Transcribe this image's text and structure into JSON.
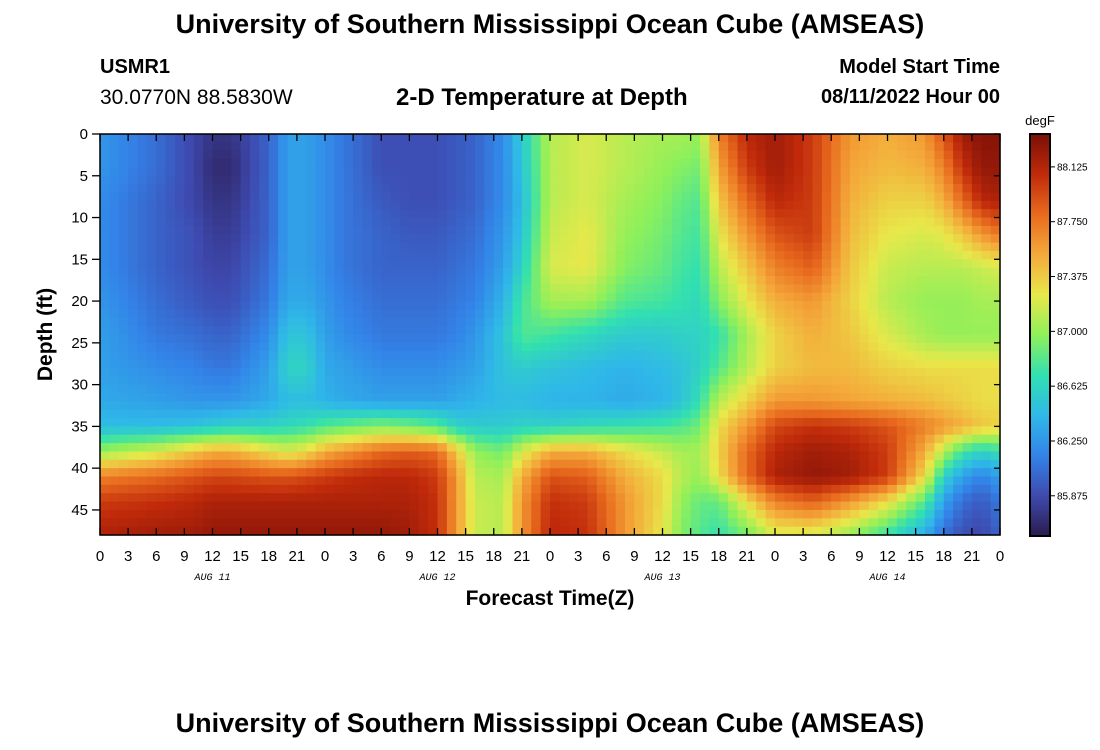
{
  "header": {
    "title": "University of Southern Mississippi Ocean Cube (AMSEAS)",
    "station_id": "USMR1",
    "coords": "30.0770N  88.5830W",
    "chart_title": "2-D Temperature at Depth",
    "model_start_label": "Model Start Time",
    "model_start_value": "08/11/2022 Hour 00"
  },
  "footer": {
    "title": "University of Southern Mississippi Ocean Cube (AMSEAS)"
  },
  "chart_data": {
    "type": "heatmap",
    "title": "2-D Temperature at Depth",
    "xlabel": "Forecast Time(Z)",
    "ylabel": "Depth (ft)",
    "x_unit": "forecast hour",
    "xlim": [
      0,
      96
    ],
    "ylim": [
      0,
      48
    ],
    "y_inverted": true,
    "x_ticks": [
      0,
      3,
      6,
      9,
      12,
      15,
      18,
      21,
      24,
      27,
      30,
      33,
      36,
      39,
      42,
      45,
      48,
      51,
      54,
      57,
      60,
      63,
      66,
      69,
      72,
      75,
      78,
      81,
      84,
      87,
      90,
      93,
      96
    ],
    "x_tick_labels": [
      "0",
      "3",
      "6",
      "9",
      "12",
      "15",
      "18",
      "21",
      "0",
      "3",
      "6",
      "9",
      "12",
      "15",
      "18",
      "21",
      "0",
      "3",
      "6",
      "9",
      "12",
      "15",
      "18",
      "21",
      "0",
      "3",
      "6",
      "9",
      "12",
      "15",
      "18",
      "21",
      "0"
    ],
    "date_labels": [
      {
        "hour": 12,
        "label": "AUG 11"
      },
      {
        "hour": 36,
        "label": "AUG 12"
      },
      {
        "hour": 60,
        "label": "AUG 13"
      },
      {
        "hour": 84,
        "label": "AUG 14"
      }
    ],
    "y_ticks": [
      0,
      5,
      10,
      15,
      20,
      25,
      30,
      35,
      40,
      45
    ],
    "y_tick_labels": [
      "0",
      "5",
      "10",
      "15",
      "20",
      "25",
      "30",
      "35",
      "40",
      "45"
    ],
    "colorbar": {
      "unit": "degF",
      "range": [
        85.6,
        88.35
      ],
      "ticks": [
        85.875,
        86.25,
        86.625,
        87.0,
        87.375,
        87.75,
        88.125
      ],
      "tick_labels": [
        "85.875",
        "86.250",
        "86.625",
        "87.000",
        "87.375",
        "87.750",
        "88.125"
      ],
      "colors": [
        "#2b1b4e",
        "#3e4ab0",
        "#3383e8",
        "#2fb8e8",
        "#32e0b0",
        "#8ef05a",
        "#e8e84a",
        "#f4a93a",
        "#e86a1e",
        "#c02a0a",
        "#7a0f08"
      ]
    },
    "grid": false,
    "depths": [
      0,
      4,
      8,
      12,
      16,
      20,
      24,
      28,
      32,
      35,
      38,
      41,
      44,
      48
    ],
    "times": [
      0,
      6,
      10,
      12,
      14,
      18,
      20,
      22,
      24,
      26,
      30,
      33,
      36,
      38,
      40,
      43,
      45,
      48,
      52,
      56,
      60,
      62,
      64,
      66,
      69,
      72,
      76,
      80,
      84,
      88,
      90,
      92,
      94,
      96
    ],
    "values": [
      [
        86.25,
        86.05,
        85.85,
        85.75,
        85.75,
        86.0,
        86.3,
        86.3,
        86.2,
        86.1,
        85.9,
        85.9,
        85.9,
        85.95,
        86.0,
        86.2,
        86.55,
        87.1,
        87.2,
        87.1,
        87.05,
        87.05,
        87.0,
        87.7,
        88.1,
        88.2,
        88.0,
        87.6,
        87.5,
        87.6,
        87.9,
        88.2,
        88.3,
        88.3
      ],
      [
        86.25,
        86.05,
        85.85,
        85.7,
        85.7,
        86.0,
        86.3,
        86.3,
        86.2,
        86.1,
        85.9,
        85.9,
        85.9,
        85.95,
        86.0,
        86.2,
        86.5,
        87.1,
        87.2,
        87.1,
        87.0,
        86.95,
        86.9,
        87.55,
        88.0,
        88.2,
        88.0,
        87.55,
        87.45,
        87.5,
        87.7,
        88.05,
        88.25,
        88.25
      ],
      [
        86.2,
        86.0,
        85.85,
        85.75,
        85.75,
        86.0,
        86.3,
        86.3,
        86.2,
        86.1,
        85.95,
        85.9,
        85.9,
        85.95,
        86.0,
        86.2,
        86.45,
        87.1,
        87.2,
        87.05,
        86.95,
        86.85,
        86.8,
        87.4,
        87.8,
        88.1,
        88.0,
        87.5,
        87.35,
        87.35,
        87.5,
        87.8,
        88.1,
        88.15
      ],
      [
        86.2,
        86.0,
        85.9,
        85.8,
        85.8,
        86.0,
        86.3,
        86.3,
        86.2,
        86.1,
        86.0,
        85.95,
        85.95,
        86.0,
        86.05,
        86.25,
        86.5,
        87.15,
        87.25,
        87.0,
        86.9,
        86.8,
        86.75,
        87.25,
        87.6,
        87.9,
        88.0,
        87.45,
        87.25,
        87.2,
        87.25,
        87.4,
        87.6,
        87.75
      ],
      [
        86.2,
        86.0,
        85.9,
        85.85,
        85.85,
        86.05,
        86.3,
        86.3,
        86.2,
        86.1,
        86.0,
        86.0,
        86.0,
        86.05,
        86.1,
        86.3,
        86.6,
        87.2,
        87.25,
        86.95,
        86.85,
        86.75,
        86.7,
        87.1,
        87.4,
        87.7,
        87.85,
        87.4,
        87.15,
        87.1,
        87.1,
        87.1,
        87.15,
        87.2
      ],
      [
        86.25,
        86.05,
        85.95,
        85.9,
        85.9,
        86.1,
        86.35,
        86.35,
        86.25,
        86.15,
        86.05,
        86.05,
        86.05,
        86.1,
        86.15,
        86.4,
        86.75,
        87.05,
        87.05,
        86.8,
        86.75,
        86.7,
        86.65,
        86.95,
        87.25,
        87.5,
        87.6,
        87.35,
        87.1,
        87.0,
        87.0,
        87.0,
        87.05,
        87.05
      ],
      [
        86.3,
        86.1,
        86.05,
        86.0,
        86.0,
        86.2,
        86.5,
        86.5,
        86.3,
        86.2,
        86.1,
        86.1,
        86.1,
        86.15,
        86.25,
        86.5,
        86.8,
        86.75,
        86.65,
        86.55,
        86.55,
        86.6,
        86.6,
        86.7,
        87.05,
        87.35,
        87.5,
        87.4,
        87.2,
        87.05,
        87.0,
        87.0,
        87.0,
        87.0
      ],
      [
        86.3,
        86.2,
        86.15,
        86.1,
        86.1,
        86.3,
        86.6,
        86.6,
        86.35,
        86.3,
        86.2,
        86.2,
        86.2,
        86.25,
        86.3,
        86.5,
        86.55,
        86.5,
        86.45,
        86.4,
        86.45,
        86.5,
        86.6,
        86.8,
        87.1,
        87.35,
        87.45,
        87.45,
        87.35,
        87.3,
        87.3,
        87.3,
        87.3,
        87.3
      ],
      [
        86.35,
        86.3,
        86.25,
        86.25,
        86.25,
        86.35,
        86.45,
        86.45,
        86.4,
        86.35,
        86.3,
        86.3,
        86.3,
        86.35,
        86.4,
        86.45,
        86.45,
        86.4,
        86.4,
        86.35,
        86.4,
        86.5,
        86.7,
        87.1,
        87.35,
        87.6,
        87.6,
        87.55,
        87.5,
        87.45,
        87.4,
        87.35,
        87.3,
        87.3
      ],
      [
        86.45,
        86.45,
        86.5,
        86.55,
        86.6,
        86.6,
        86.65,
        86.7,
        86.8,
        86.85,
        86.95,
        86.9,
        86.8,
        86.6,
        86.55,
        86.55,
        86.6,
        86.6,
        86.65,
        86.7,
        86.75,
        86.8,
        86.9,
        87.3,
        87.6,
        87.95,
        88.05,
        88.0,
        87.9,
        87.7,
        87.6,
        87.5,
        87.4,
        87.35
      ],
      [
        87.0,
        87.2,
        87.4,
        87.5,
        87.5,
        87.3,
        87.2,
        87.3,
        87.5,
        87.6,
        87.8,
        87.85,
        87.8,
        87.4,
        87.0,
        86.9,
        87.2,
        87.5,
        87.5,
        87.3,
        87.15,
        87.05,
        87.05,
        87.35,
        87.8,
        88.1,
        88.2,
        88.15,
        88.0,
        87.5,
        87.1,
        86.75,
        86.6,
        86.7
      ],
      [
        87.7,
        87.8,
        87.9,
        87.95,
        87.95,
        87.9,
        87.9,
        87.95,
        88.0,
        88.05,
        88.1,
        88.1,
        88.0,
        87.6,
        87.1,
        87.05,
        87.5,
        87.9,
        87.85,
        87.5,
        87.3,
        87.1,
        87.0,
        87.3,
        87.8,
        88.15,
        88.25,
        88.2,
        88.0,
        87.3,
        86.6,
        86.3,
        86.15,
        86.3
      ],
      [
        88.0,
        88.05,
        88.1,
        88.15,
        88.15,
        88.15,
        88.15,
        88.15,
        88.15,
        88.15,
        88.15,
        88.15,
        88.05,
        87.6,
        87.15,
        87.1,
        87.6,
        88.05,
        88.0,
        87.6,
        87.3,
        87.0,
        86.85,
        86.85,
        87.3,
        87.7,
        87.85,
        87.6,
        87.3,
        86.8,
        86.3,
        86.05,
        85.95,
        86.1
      ],
      [
        88.15,
        88.2,
        88.2,
        88.25,
        88.25,
        88.25,
        88.25,
        88.25,
        88.25,
        88.25,
        88.25,
        88.2,
        88.05,
        87.6,
        87.15,
        87.1,
        87.6,
        88.1,
        88.05,
        87.6,
        87.25,
        86.95,
        86.8,
        86.7,
        86.9,
        87.2,
        87.2,
        87.0,
        86.7,
        86.35,
        86.05,
        85.9,
        85.85,
        86.0
      ]
    ]
  }
}
